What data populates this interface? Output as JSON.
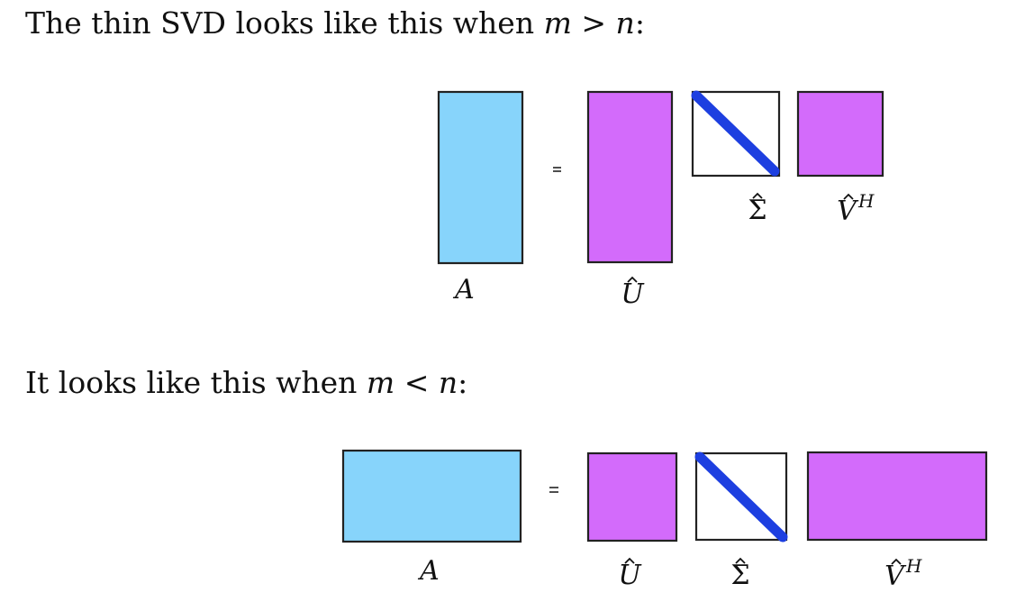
{
  "headings": {
    "first": {
      "prefix": "The thin SVD looks like this when ",
      "var_m": "m",
      "op": ">",
      "var_n": "n",
      "suffix": ":"
    },
    "second": {
      "prefix": "It looks like this when ",
      "var_m": "m",
      "op": "<",
      "var_n": "n",
      "suffix": ":"
    }
  },
  "labels": {
    "A": "A",
    "U": "U",
    "Sigma": "Σ",
    "V": "V",
    "V_sup": "H",
    "hat": "^"
  },
  "colors": {
    "A_fill": "#87d4fb",
    "factor_fill": "#d36bfb",
    "sigma_fill": "#ffffff",
    "diagonal": "#1d3fe0",
    "outline": "#222222"
  },
  "diagrams": [
    {
      "case": "m > n",
      "A": "tall",
      "U": "tall",
      "Sigma": "square",
      "V_H": "square"
    },
    {
      "case": "m < n",
      "A": "wide",
      "U": "square",
      "Sigma": "square",
      "V_H": "wide"
    }
  ]
}
